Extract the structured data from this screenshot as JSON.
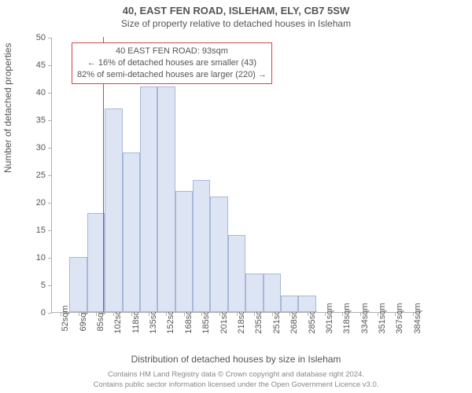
{
  "title": "40, EAST FEN ROAD, ISLEHAM, ELY, CB7 5SW",
  "subtitle": "Size of property relative to detached houses in Isleham",
  "ylabel": "Number of detached properties",
  "xlabel": "Distribution of detached houses by size in Isleham",
  "chart": {
    "type": "histogram",
    "ylim": [
      0,
      50
    ],
    "ytick_step": 5,
    "x_start": 52,
    "x_step": 17,
    "x_nbins": 21,
    "x_unit": "sqm",
    "bar_color": "#dde5f4",
    "bar_border_color": "#a8b8d8",
    "axis_color": "#b0b0b0",
    "background_color": "#ffffff",
    "bars": [
      {
        "x": 52,
        "count": 0
      },
      {
        "x": 69,
        "count": 10
      },
      {
        "x": 85,
        "count": 18
      },
      {
        "x": 102,
        "count": 37
      },
      {
        "x": 118,
        "count": 29
      },
      {
        "x": 135,
        "count": 41
      },
      {
        "x": 152,
        "count": 41
      },
      {
        "x": 168,
        "count": 22
      },
      {
        "x": 185,
        "count": 24
      },
      {
        "x": 201,
        "count": 21
      },
      {
        "x": 218,
        "count": 14
      },
      {
        "x": 235,
        "count": 7
      },
      {
        "x": 251,
        "count": 7
      },
      {
        "x": 268,
        "count": 3
      },
      {
        "x": 285,
        "count": 3
      },
      {
        "x": 301,
        "count": 0
      },
      {
        "x": 318,
        "count": 0
      },
      {
        "x": 334,
        "count": 0
      },
      {
        "x": 351,
        "count": 0
      },
      {
        "x": 367,
        "count": 0
      },
      {
        "x": 384,
        "count": 0
      }
    ],
    "reference_line": {
      "x": 93,
      "color": "#d44444"
    }
  },
  "annotation": {
    "border_color": "#d44444",
    "lines": [
      "40 EAST FEN ROAD: 93sqm",
      "← 16% of detached houses are smaller (43)",
      "82% of semi-detached houses are larger (220) →"
    ]
  },
  "footer": {
    "line1": "Contains HM Land Registry data © Crown copyright and database right 2024.",
    "line2": "Contains public sector information licensed under the Open Government Licence v3.0."
  }
}
